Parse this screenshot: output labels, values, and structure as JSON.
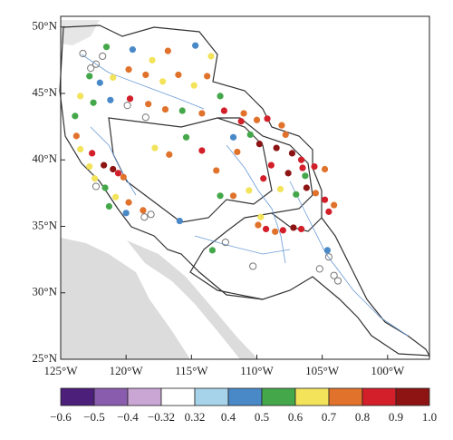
{
  "chart_data": {
    "type": "scatter",
    "x": [
      -121.5,
      -119.5,
      -118,
      -116.8,
      -114.7,
      -113.5,
      -122.8,
      -122,
      -121,
      -119.8,
      -118.5,
      -117.2,
      -116,
      -114.8,
      -113.8,
      -112.8,
      -123.5,
      -122.5,
      -121.2,
      -119.7,
      -118.3,
      -117,
      -115.7,
      -114.2,
      -112.5,
      -123.9,
      -111,
      -110,
      -123.8,
      -123.5,
      -122.6,
      -121.7,
      -121,
      -120.6,
      -120.2,
      -122.8,
      -122.4,
      -121.6,
      -120.8,
      -119.8,
      -118.7,
      -120,
      -121.3,
      -117.8,
      -116.7,
      -114.2,
      -113.1,
      -111.5,
      -111.8,
      -115.4,
      -109.8,
      -108.5,
      -107.3,
      -106.6,
      -108.9,
      -107.6,
      -106.5,
      -105.6,
      -104.8,
      -109.5,
      -108.2,
      -107,
      -106.2,
      -105.5,
      -104.8,
      -104.1,
      -104.5,
      -110.6,
      -111.8,
      -112.8,
      -109.9,
      -109.3,
      -108.6,
      -108,
      -107.2,
      -106.6,
      -109.7,
      -113.4,
      -104.6,
      -106.3,
      -107.8,
      -108.1,
      -109.2,
      -110.5,
      -111.2,
      -115.9
    ],
    "y": [
      48.5,
      48.3,
      47.5,
      48.2,
      48.6,
      47.8,
      46.3,
      45.8,
      46.2,
      46.8,
      46.4,
      45.9,
      46.4,
      45.6,
      46.3,
      44.8,
      44.8,
      44.3,
      44.5,
      44.6,
      44.2,
      43.8,
      43.7,
      43.5,
      43.7,
      43.3,
      43.5,
      43,
      41.8,
      40.8,
      40.5,
      39.6,
      39.3,
      39,
      38.7,
      39.5,
      38.6,
      37.9,
      37.2,
      36.8,
      36.2,
      36,
      36.5,
      40.9,
      40.4,
      40.7,
      39.2,
      40.6,
      41.7,
      41.7,
      41.2,
      40.9,
      40.5,
      40,
      39.6,
      39,
      39.4,
      39.5,
      39.3,
      38.6,
      37.8,
      37.4,
      37.9,
      37.5,
      37,
      36.6,
      36.1,
      37.7,
      37.3,
      37.3,
      35.1,
      34.8,
      34.6,
      34.7,
      34.9,
      34.8,
      35.7,
      33.2,
      33.2,
      38.8,
      41.9,
      42.6,
      43.1,
      41.9,
      42.9,
      35.4
    ],
    "values": [
      0.55,
      0.45,
      0.65,
      0.75,
      0.45,
      0.65,
      0.55,
      0.45,
      0.65,
      0.75,
      0.75,
      0.65,
      0.75,
      0.65,
      0.75,
      0.55,
      0.65,
      0.55,
      0.45,
      0.85,
      0.75,
      0.75,
      0.55,
      0.75,
      0.85,
      0.55,
      0.75,
      0.75,
      0.75,
      0.65,
      0.85,
      0.95,
      0.95,
      0.85,
      0.75,
      0.65,
      0.65,
      0.55,
      0.65,
      0.75,
      0.75,
      0.45,
      0.55,
      0.65,
      0.75,
      0.85,
      0.75,
      0.75,
      0.45,
      0.55,
      0.95,
      0.95,
      0.95,
      0.85,
      0.85,
      0.95,
      0.85,
      0.85,
      0.75,
      0.85,
      0.65,
      0.55,
      0.95,
      0.75,
      0.85,
      0.75,
      0.85,
      0.65,
      0.75,
      0.55,
      0.75,
      0.85,
      0.75,
      0.85,
      0.95,
      0.85,
      0.65,
      0.55,
      0.45,
      0.55,
      0.75,
      0.75,
      0.85,
      0.55,
      0.85,
      0.45
    ],
    "open_x": [
      -122.3,
      -121.8,
      -122.7,
      -123.3,
      -118.5,
      -119.9,
      -118.1,
      -118.6,
      -110.3,
      -105.2,
      -104.5,
      -104.1,
      -103.8,
      -112.4,
      -122.3
    ],
    "open_y": [
      47.2,
      47.8,
      46.9,
      48,
      43.2,
      44.1,
      35.9,
      35.7,
      32,
      31.8,
      32.7,
      31.3,
      30.9,
      33.8,
      38
    ],
    "xlim": [
      -125,
      -96.8
    ],
    "ylim": [
      25,
      50.8
    ],
    "xticks": [
      {
        "value": -125,
        "label": "125°W"
      },
      {
        "value": -120,
        "label": "120°W"
      },
      {
        "value": -115,
        "label": "115°W"
      },
      {
        "value": -110,
        "label": "110°W"
      },
      {
        "value": -105,
        "label": "105°W"
      },
      {
        "value": -100,
        "label": "100°W"
      }
    ],
    "yticks": [
      {
        "value": 25,
        "label": "25°N"
      },
      {
        "value": 30,
        "label": "30°N"
      },
      {
        "value": 35,
        "label": "35°N"
      },
      {
        "value": 40,
        "label": "40°N"
      },
      {
        "value": 45,
        "label": "45°N"
      },
      {
        "value": 50,
        "label": "50°N"
      }
    ],
    "colorbar_bounds": [
      {
        "value": -0.6,
        "label": "−0.6"
      },
      {
        "value": -0.5,
        "label": "−0.5"
      },
      {
        "value": -0.4,
        "label": "−0.4"
      },
      {
        "value": -0.32,
        "label": "−0.32"
      },
      0.32,
      0.4,
      0.5,
      0.6,
      0.7,
      0.8,
      0.9,
      {
        "value": 1.0,
        "label": "1.0"
      }
    ],
    "colorbar_colors": [
      "#4b1f7a",
      "#8a5cad",
      "#c9a6d4",
      "#ffffff",
      "#a6d3ea",
      "#4a89c8",
      "#44a84a",
      "#f2e35a",
      "#e0722b",
      "#d21f2a",
      "#8e1414"
    ]
  }
}
